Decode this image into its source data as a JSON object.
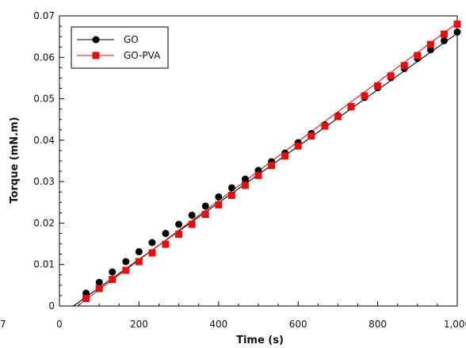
{
  "chart_data": {
    "type": "line",
    "xlabel": "Time (s)",
    "ylabel": "Torque (mN.m)",
    "xlim": [
      0,
      1000
    ],
    "ylim": [
      0,
      0.07
    ],
    "x_ticks": [
      0,
      200,
      400,
      600,
      800,
      1000
    ],
    "x_tick_labels": [
      "0",
      "200",
      "400",
      "600",
      "800",
      "1,000"
    ],
    "y_ticks": [
      0,
      0.01,
      0.02,
      0.03,
      0.04,
      0.05,
      0.06,
      0.07
    ],
    "y_tick_labels": [
      "0",
      "0.01",
      "0.02",
      "0.03",
      "0.04",
      "0.05",
      "0.06",
      "0.07"
    ],
    "edge_label": "7",
    "grid": false,
    "legend_position": "top-left",
    "series": [
      {
        "name": "GO",
        "marker": "circle",
        "color": "#000000",
        "fit": [
          [
            35,
            0.0
          ],
          [
            1000,
            0.0658
          ]
        ],
        "x": [
          67,
          100,
          133,
          167,
          200,
          233,
          267,
          300,
          333,
          367,
          400,
          433,
          467,
          500,
          533,
          567,
          600,
          633,
          667,
          700,
          733,
          767,
          800,
          833,
          867,
          900,
          933,
          967,
          1000
        ],
        "y": [
          0.0031,
          0.0057,
          0.0082,
          0.0107,
          0.0131,
          0.0153,
          0.0175,
          0.0197,
          0.0219,
          0.0241,
          0.0263,
          0.0285,
          0.0306,
          0.0327,
          0.0348,
          0.0369,
          0.0394,
          0.0416,
          0.0437,
          0.0459,
          0.048,
          0.0503,
          0.0527,
          0.0551,
          0.0573,
          0.0597,
          0.0618,
          0.064,
          0.0661
        ]
      },
      {
        "name": "GO-PVA",
        "marker": "square",
        "color": "#e01010",
        "fit": [
          [
            45,
            0.0
          ],
          [
            1000,
            0.0683
          ]
        ],
        "x": [
          67,
          100,
          133,
          167,
          200,
          233,
          267,
          300,
          333,
          367,
          400,
          433,
          467,
          500,
          533,
          567,
          600,
          633,
          667,
          700,
          733,
          767,
          800,
          833,
          867,
          900,
          933,
          967,
          1000
        ],
        "y": [
          0.0018,
          0.0042,
          0.0064,
          0.0086,
          0.0107,
          0.0128,
          0.0149,
          0.0173,
          0.0197,
          0.0221,
          0.0244,
          0.0267,
          0.0291,
          0.0315,
          0.0339,
          0.0362,
          0.0386,
          0.041,
          0.0434,
          0.0457,
          0.0481,
          0.0507,
          0.0531,
          0.0555,
          0.058,
          0.0604,
          0.0631,
          0.0656,
          0.068
        ]
      }
    ]
  }
}
